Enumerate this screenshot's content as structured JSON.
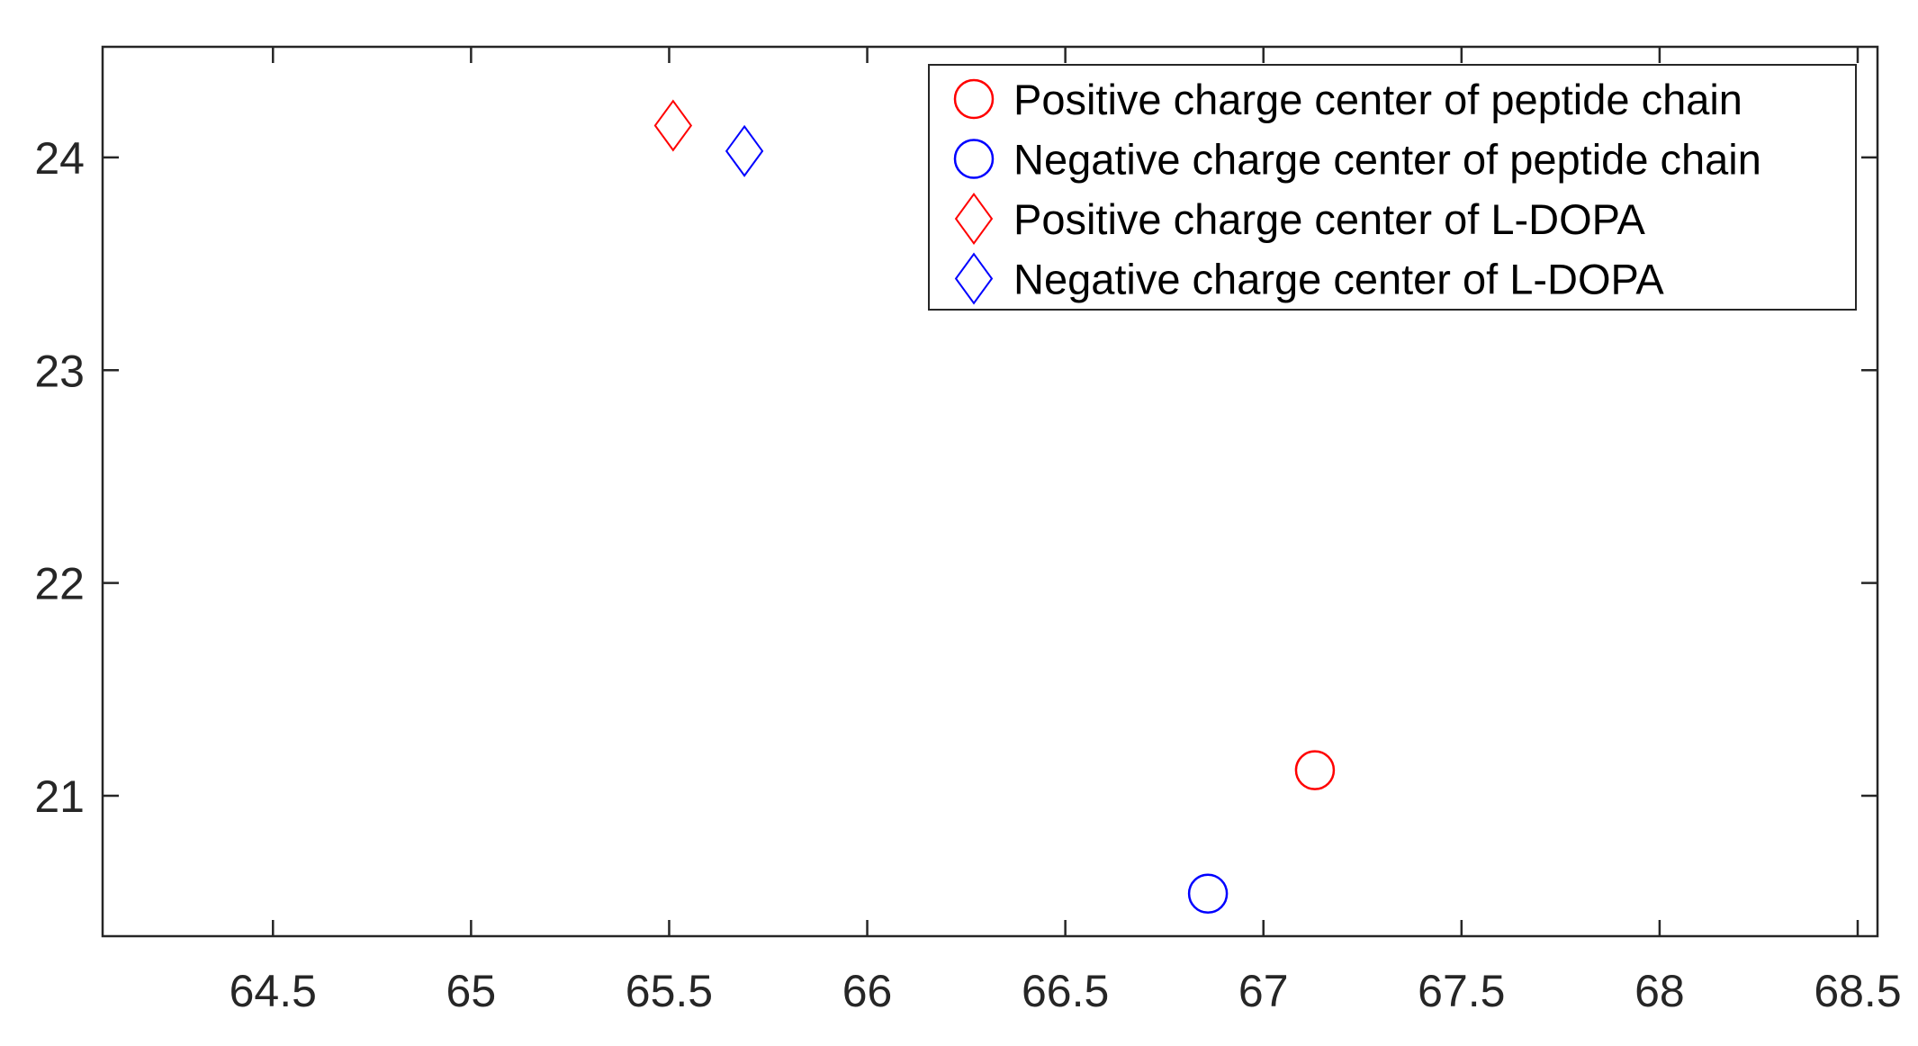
{
  "chart_data": {
    "type": "scatter",
    "title": "",
    "xlabel": "",
    "ylabel": "",
    "xlim": [
      64.07,
      68.55
    ],
    "ylim": [
      20.34,
      24.52
    ],
    "x_ticks": [
      "64.5",
      "65",
      "65.5",
      "66",
      "66.5",
      "67",
      "67.5",
      "68",
      "68.5"
    ],
    "y_ticks": [
      "21",
      "22",
      "23",
      "24"
    ],
    "grid": false,
    "legend_position": "top-right",
    "series": [
      {
        "name": "Positive charge center of peptide chain",
        "marker": "circle",
        "color": "#ff0000",
        "points": [
          {
            "x": 67.13,
            "y": 21.12
          }
        ]
      },
      {
        "name": "Negative charge center of peptide chain",
        "marker": "circle",
        "color": "#0000ff",
        "points": [
          {
            "x": 66.86,
            "y": 20.54
          }
        ]
      },
      {
        "name": "Positive charge center of L-DOPA",
        "marker": "diamond",
        "color": "#ff0000",
        "points": [
          {
            "x": 65.51,
            "y": 24.15
          }
        ]
      },
      {
        "name": "Negative charge center of L-DOPA",
        "marker": "diamond",
        "color": "#0000ff",
        "points": [
          {
            "x": 65.69,
            "y": 24.03
          }
        ]
      }
    ]
  }
}
